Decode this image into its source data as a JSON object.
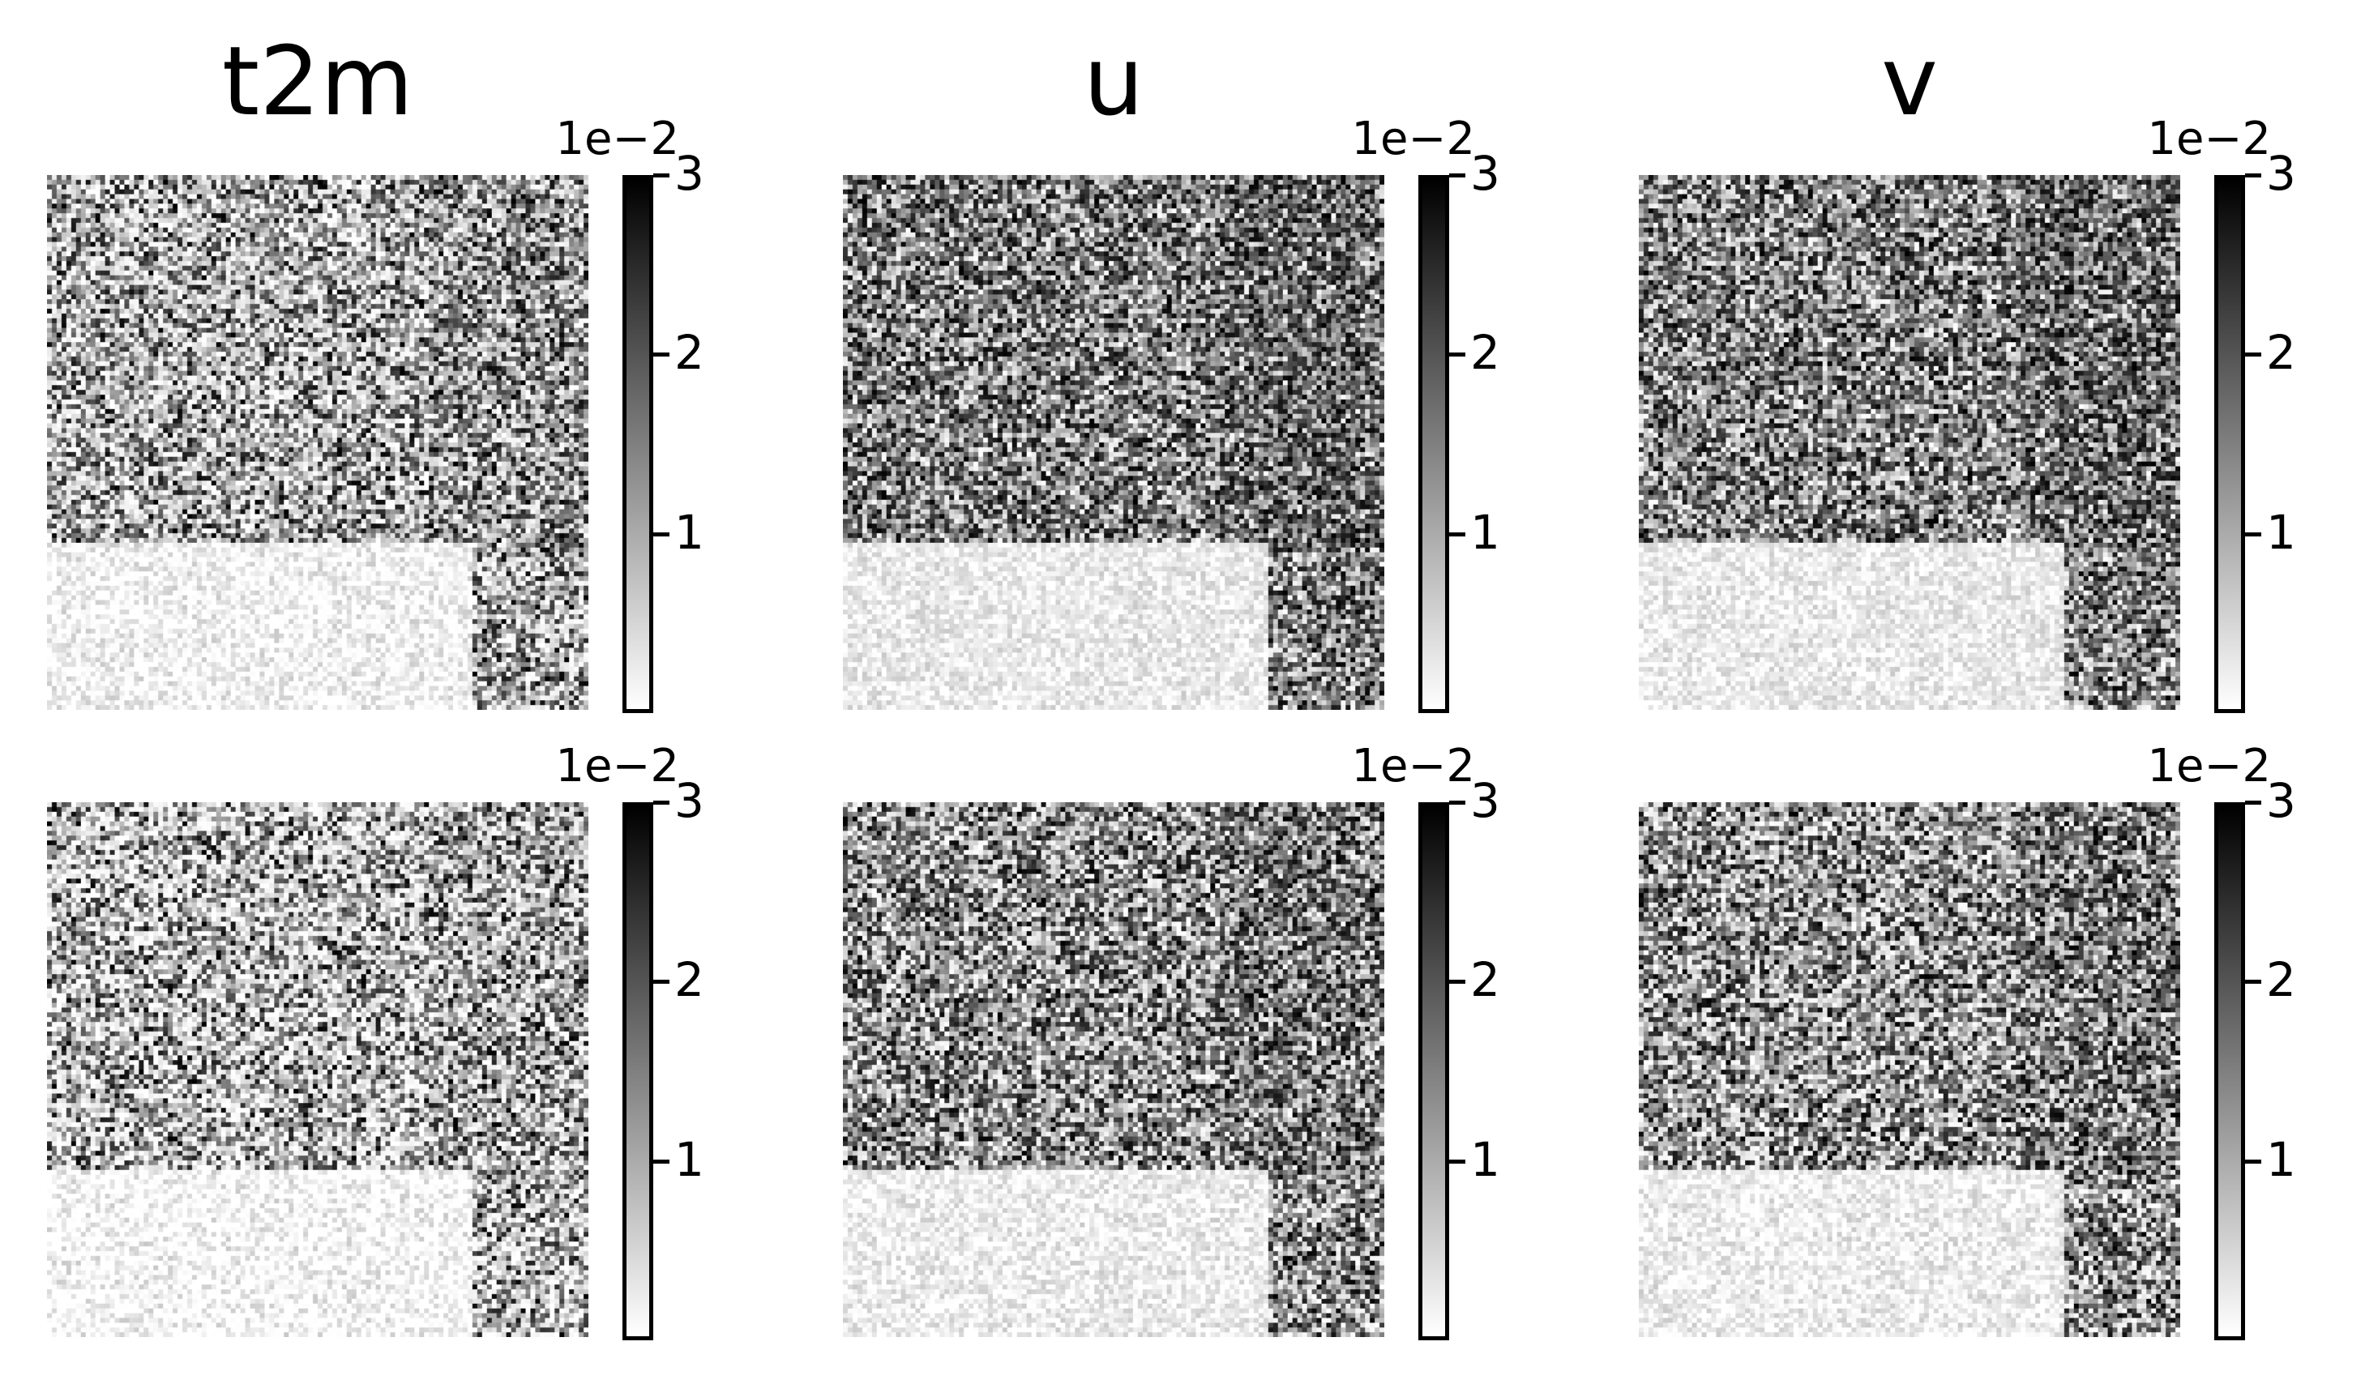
{
  "chart_data": {
    "type": "heatmap",
    "layout": "2 rows x 3 columns",
    "colormap": "grayscale (white = low, black = high)",
    "columns": [
      "t2m",
      "u",
      "v"
    ],
    "panels": [
      {
        "row": 1,
        "column": "t2m",
        "colorbar": {
          "range": [
            0,
            3
          ],
          "ticks": [
            "1",
            "2",
            "3"
          ],
          "multiplier": "1e−2"
        }
      },
      {
        "row": 1,
        "column": "u",
        "colorbar": {
          "range": [
            0,
            3
          ],
          "ticks": [
            "1",
            "2",
            "3"
          ],
          "multiplier": "1e−2"
        }
      },
      {
        "row": 1,
        "column": "v",
        "colorbar": {
          "range": [
            0,
            3
          ],
          "ticks": [
            "1",
            "2",
            "3"
          ],
          "multiplier": "1e−2"
        }
      },
      {
        "row": 2,
        "column": "t2m",
        "colorbar": {
          "range": [
            0,
            3
          ],
          "ticks": [
            "1",
            "2",
            "3"
          ],
          "multiplier": "1e−2"
        }
      },
      {
        "row": 2,
        "column": "u",
        "colorbar": {
          "range": [
            0,
            3
          ],
          "ticks": [
            "1",
            "2",
            "3"
          ],
          "multiplier": "1e−2"
        }
      },
      {
        "row": 2,
        "column": "v",
        "colorbar": {
          "range": [
            0,
            3
          ],
          "ticks": [
            "1",
            "2",
            "3"
          ],
          "multiplier": "1e−2"
        }
      }
    ],
    "grid": false,
    "axes_visible": false
  }
}
